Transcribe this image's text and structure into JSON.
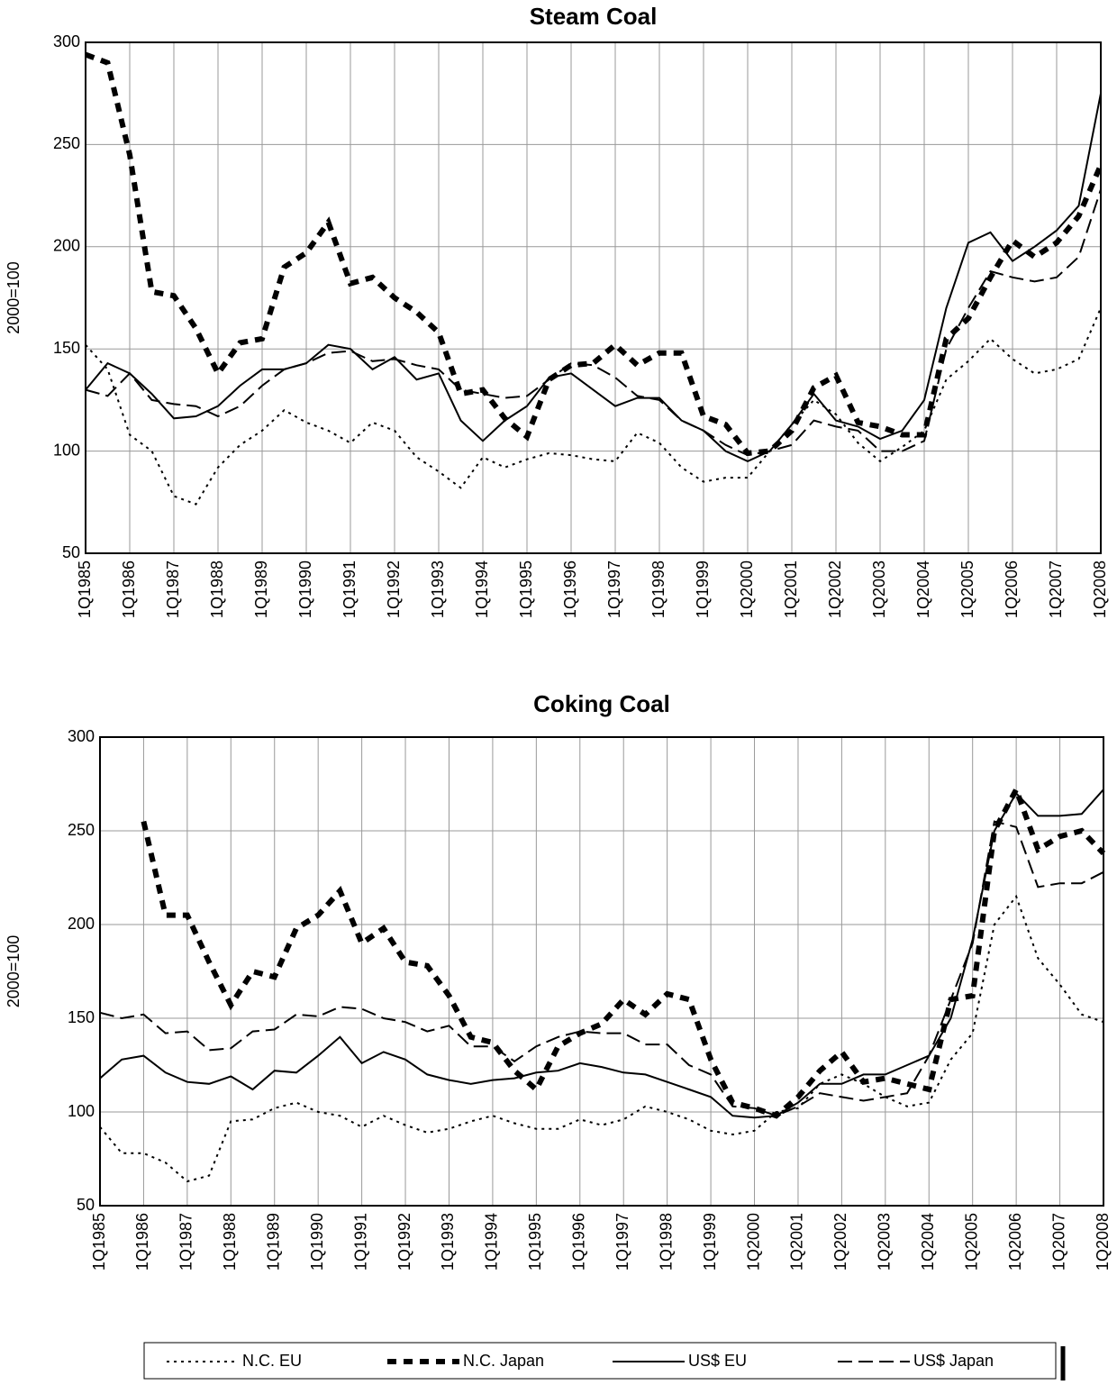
{
  "chart_data": [
    {
      "type": "line",
      "title": "Steam Coal",
      "y_label": "2000=100",
      "categories": [
        "1Q1985",
        null,
        "1Q1986",
        null,
        "1Q1987",
        null,
        "1Q1988",
        null,
        "1Q1989",
        null,
        "1Q1990",
        null,
        "1Q1991",
        null,
        "1Q1992",
        null,
        "1Q1993",
        null,
        "1Q1994",
        null,
        "1Q1995",
        null,
        "1Q1996",
        null,
        "1Q1997",
        null,
        "1Q1998",
        null,
        "1Q1999",
        null,
        "1Q2000",
        null,
        "1Q2001",
        null,
        "1Q2002",
        null,
        "1Q2003",
        null,
        "1Q2004",
        null,
        "1Q2005",
        null,
        "1Q2006",
        null,
        "1Q2007",
        null,
        "1Q2008"
      ],
      "ylim": [
        50,
        300
      ],
      "yticks": [
        50,
        100,
        150,
        200,
        250,
        300
      ],
      "grid": true,
      "series": [
        {
          "name": "N.C. EU",
          "color": "#000000",
          "style": "dotted",
          "values": [
            152,
            140,
            108,
            100,
            78,
            74,
            92,
            103,
            110,
            120,
            114,
            110,
            104,
            114,
            110,
            97,
            90,
            82,
            97,
            92,
            96,
            99,
            98,
            96,
            95,
            109,
            104,
            92,
            85,
            87,
            87,
            100,
            113,
            125,
            118,
            104,
            95,
            102,
            110,
            135,
            144,
            155,
            145,
            138,
            140,
            145,
            170
          ]
        },
        {
          "name": "N.C. Japan",
          "color": "#000000",
          "style": "thick-dashed",
          "values": [
            294,
            290,
            245,
            178,
            176,
            160,
            138,
            153,
            155,
            190,
            197,
            212,
            182,
            185,
            175,
            168,
            158,
            128,
            130,
            116,
            107,
            135,
            142,
            143,
            152,
            142,
            148,
            148,
            117,
            113,
            99,
            100,
            110,
            131,
            137,
            114,
            112,
            108,
            108,
            155,
            165,
            185,
            203,
            195,
            202,
            215,
            240
          ]
        },
        {
          "name": "US$ EU",
          "color": "#000000",
          "style": "solid",
          "values": [
            130,
            143,
            138,
            128,
            116,
            117,
            122,
            132,
            140,
            140,
            143,
            152,
            150,
            140,
            146,
            135,
            138,
            115,
            105,
            115,
            122,
            136,
            138,
            130,
            122,
            126,
            126,
            115,
            110,
            100,
            95,
            100,
            113,
            128,
            115,
            112,
            106,
            110,
            125,
            170,
            202,
            207,
            193,
            200,
            208,
            220,
            275
          ]
        },
        {
          "name": "US$ Japan",
          "color": "#000000",
          "style": "dashed",
          "values": [
            130,
            127,
            138,
            125,
            123,
            122,
            117,
            122,
            132,
            140,
            143,
            148,
            149,
            144,
            145,
            142,
            140,
            130,
            128,
            126,
            127,
            135,
            143,
            142,
            136,
            127,
            125,
            115,
            110,
            103,
            98,
            100,
            103,
            115,
            112,
            110,
            100,
            100,
            105,
            150,
            170,
            188,
            185,
            183,
            185,
            195,
            228
          ]
        }
      ]
    },
    {
      "type": "line",
      "title": "Coking Coal",
      "y_label": "2000=100",
      "categories": [
        "1Q1985",
        null,
        "1Q1986",
        null,
        "1Q1987",
        null,
        "1Q1988",
        null,
        "1Q1989",
        null,
        "1Q1990",
        null,
        "1Q1991",
        null,
        "1Q1992",
        null,
        "1Q1993",
        null,
        "1Q1994",
        null,
        "1Q1995",
        null,
        "1Q1996",
        null,
        "1Q1997",
        null,
        "1Q1998",
        null,
        "1Q1999",
        null,
        "1Q2000",
        null,
        "1Q2001",
        null,
        "1Q2002",
        null,
        "1Q2003",
        null,
        "1Q2004",
        null,
        "1Q2005",
        null,
        "1Q2006",
        null,
        "1Q2007",
        null,
        "1Q2008"
      ],
      "ylim": [
        50,
        300
      ],
      "yticks": [
        50,
        100,
        150,
        200,
        250,
        300
      ],
      "grid": true,
      "series": [
        {
          "name": "N.C. EU",
          "color": "#000000",
          "style": "dotted",
          "values": [
            92,
            78,
            78,
            73,
            63,
            66,
            95,
            96,
            102,
            105,
            100,
            98,
            92,
            98,
            93,
            89,
            91,
            95,
            98,
            94,
            91,
            91,
            96,
            93,
            96,
            103,
            100,
            96,
            90,
            88,
            90,
            100,
            102,
            115,
            120,
            115,
            108,
            103,
            105,
            128,
            142,
            200,
            215,
            182,
            168,
            152,
            148
          ]
        },
        {
          "name": "N.C. Japan",
          "color": "#000000",
          "style": "thick-dashed",
          "values": [
            null,
            null,
            255,
            205,
            205,
            180,
            157,
            175,
            172,
            198,
            205,
            218,
            190,
            198,
            180,
            178,
            162,
            140,
            137,
            122,
            112,
            135,
            142,
            147,
            160,
            152,
            163,
            160,
            128,
            105,
            102,
            98,
            108,
            122,
            132,
            116,
            118,
            115,
            112,
            160,
            162,
            250,
            272,
            240,
            247,
            250,
            238
          ]
        },
        {
          "name": "US$ EU",
          "color": "#000000",
          "style": "solid",
          "values": [
            118,
            128,
            130,
            121,
            116,
            115,
            119,
            112,
            122,
            121,
            130,
            140,
            126,
            132,
            128,
            120,
            117,
            115,
            117,
            118,
            121,
            122,
            126,
            124,
            121,
            120,
            116,
            112,
            108,
            98,
            97,
            98,
            105,
            115,
            115,
            120,
            120,
            125,
            130,
            150,
            192,
            250,
            270,
            258,
            258,
            259,
            272
          ]
        },
        {
          "name": "US$ Japan",
          "color": "#000000",
          "style": "dashed",
          "values": [
            153,
            150,
            152,
            142,
            143,
            133,
            134,
            143,
            144,
            152,
            151,
            156,
            155,
            150,
            148,
            143,
            146,
            135,
            135,
            127,
            135,
            140,
            143,
            142,
            142,
            136,
            136,
            125,
            120,
            103,
            102,
            98,
            103,
            110,
            108,
            106,
            108,
            110,
            130,
            160,
            190,
            255,
            252,
            220,
            222,
            222,
            228
          ]
        }
      ]
    }
  ]
}
